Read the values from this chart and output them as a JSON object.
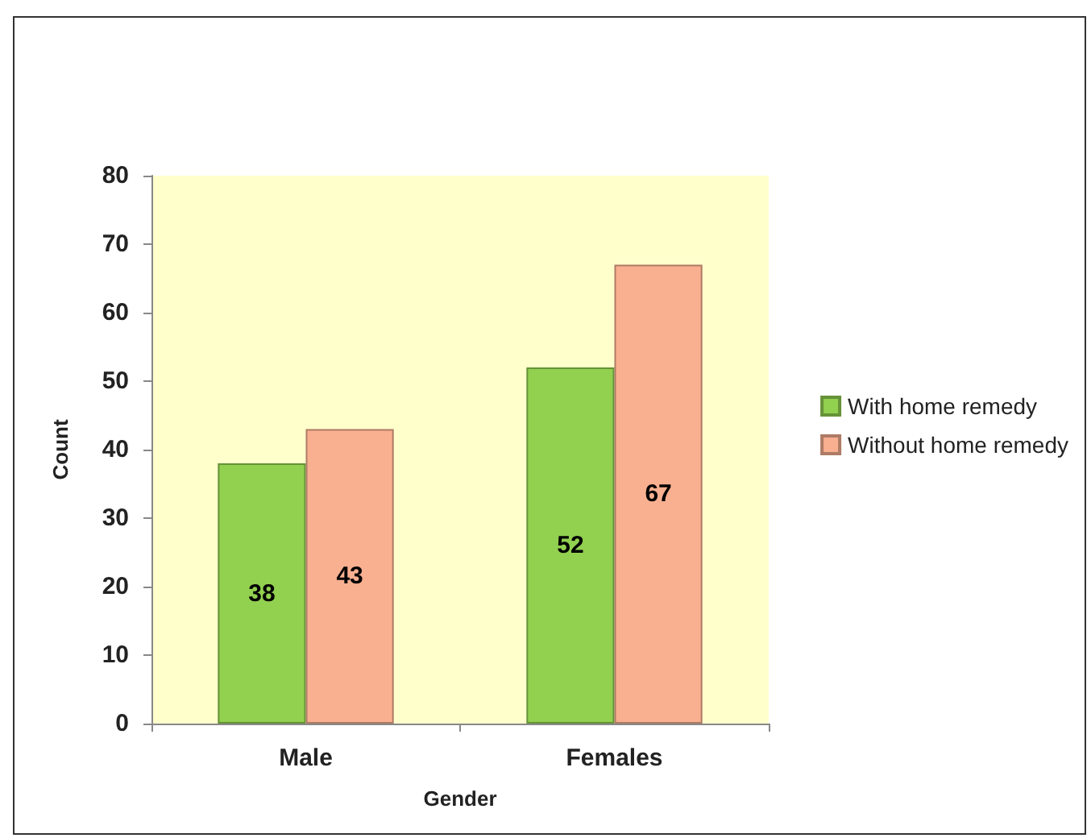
{
  "chart_data": {
    "type": "bar",
    "xlabel": "Gender",
    "ylabel": "Count",
    "categories": [
      "Male",
      "Females"
    ],
    "series": [
      {
        "name": "With home remedy",
        "color": "#92d050",
        "values": [
          38,
          52
        ]
      },
      {
        "name": "Without home remedy",
        "color": "#f9b090",
        "values": [
          43,
          67
        ]
      }
    ],
    "ylim": [
      0,
      80
    ],
    "yticks": [
      0,
      10,
      20,
      30,
      40,
      50,
      60,
      70,
      80
    ],
    "grid": false,
    "legend": "right",
    "data_labels": true
  }
}
